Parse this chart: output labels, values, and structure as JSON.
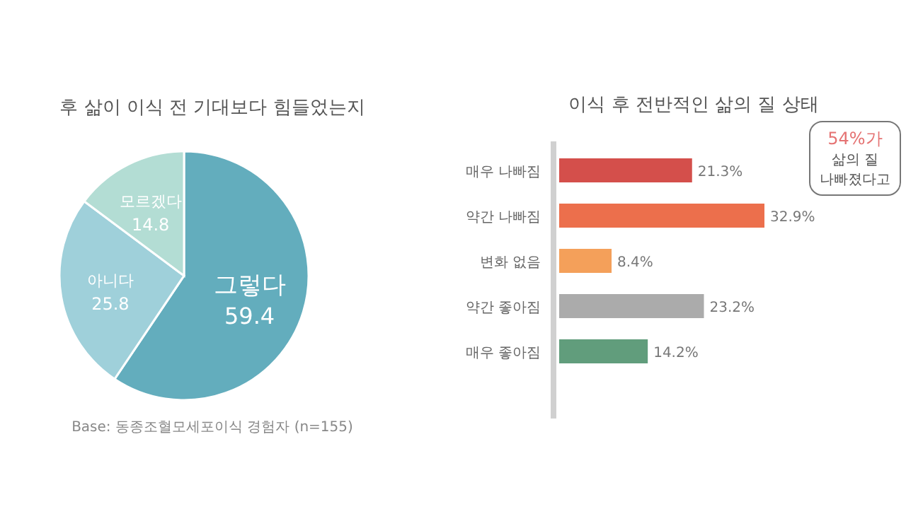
{
  "chart_data": [
    {
      "type": "pie",
      "title": "후 삶이 이식 전 기대보다 힘들었는지",
      "categories": [
        "그렇다",
        "아니다",
        "모르겠다"
      ],
      "values": [
        59.4,
        25.8,
        14.8
      ],
      "colors": [
        "#63adbd",
        "#9fd0da",
        "#b3ddd4"
      ],
      "data_labels": true,
      "annotations": [
        "Base: 동종조혈모세포이식 경험자 (n=155)"
      ]
    },
    {
      "type": "bar",
      "orientation": "horizontal",
      "title": "이식 후 전반적인 삶의 질 상태",
      "categories": [
        "매우 나빠짐",
        "약간 나빠짐",
        "변화 없음",
        "약간 좋아짐",
        "매우 좋아짐"
      ],
      "values": [
        21.3,
        32.9,
        8.4,
        23.2,
        14.2
      ],
      "colors": [
        "#d44f4b",
        "#ec6f4c",
        "#f4a05a",
        "#ababab",
        "#619d7c"
      ],
      "value_labels": [
        "21.3%",
        "32.9%",
        "8.4%",
        "23.2%",
        "14.2%"
      ],
      "annotations": [
        "54%가",
        "삶의 질",
        "나빠졌다고"
      ]
    }
  ]
}
